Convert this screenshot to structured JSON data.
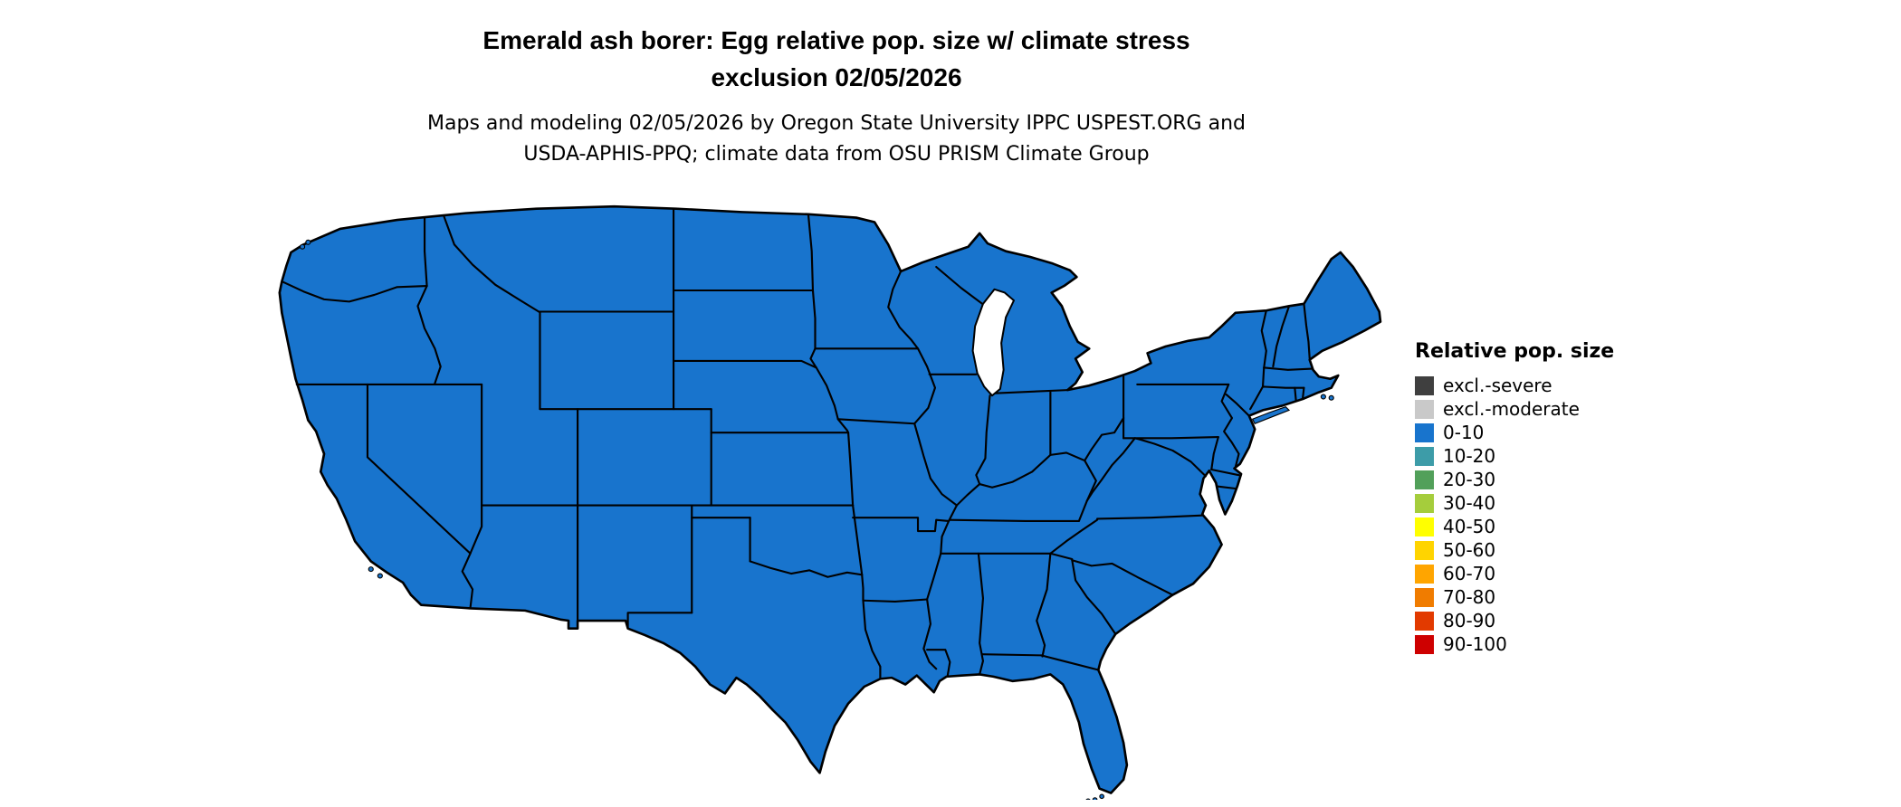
{
  "title": {
    "line1": "Emerald ash borer: Egg relative pop. size w/ climate stress",
    "line2": "exclusion 02/05/2026"
  },
  "subtitle": {
    "line1": "Maps and modeling 02/05/2026 by Oregon State University IPPC USPEST.ORG and",
    "line2": "USDA-APHIS-PPQ; climate data from OSU PRISM Climate Group"
  },
  "map": {
    "region": "Contiguous United States with state boundaries",
    "fill_color": "#1874CD",
    "border_color": "#000000",
    "background_color": "#FFFFFF",
    "all_states_category": "0-10"
  },
  "legend": {
    "title": "Relative pop. size",
    "items": [
      {
        "label": "excl.-severe",
        "color": "#3F3F3F"
      },
      {
        "label": "excl.-moderate",
        "color": "#C9C9C9"
      },
      {
        "label": "0-10",
        "color": "#1874CD"
      },
      {
        "label": "10-20",
        "color": "#3D9CA8"
      },
      {
        "label": "20-30",
        "color": "#52A05A"
      },
      {
        "label": "30-40",
        "color": "#A5CD3C"
      },
      {
        "label": "40-50",
        "color": "#FFFF00"
      },
      {
        "label": "50-60",
        "color": "#FFD400"
      },
      {
        "label": "60-70",
        "color": "#FFA500"
      },
      {
        "label": "70-80",
        "color": "#F07C00"
      },
      {
        "label": "80-90",
        "color": "#E23A00"
      },
      {
        "label": "90-100",
        "color": "#CE0000"
      }
    ]
  }
}
